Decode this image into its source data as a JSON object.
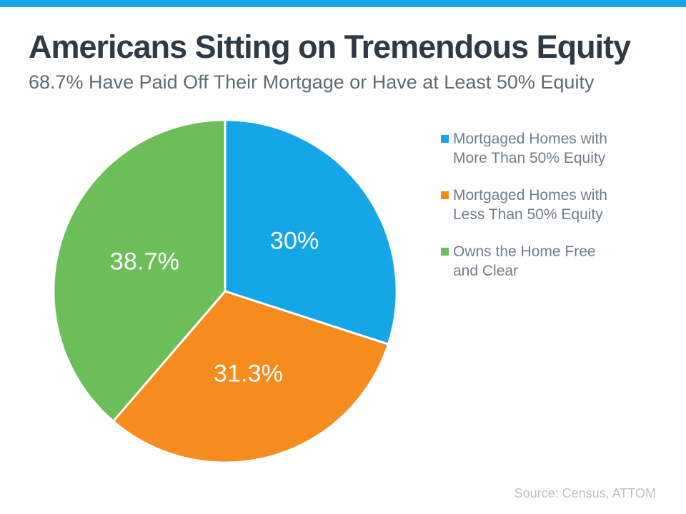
{
  "page": {
    "title": "Americans Sitting on Tremendous Equity",
    "subtitle": "68.7% Have Paid Off Their Mortgage or Have at Least 50% Equity",
    "source": "Source: Census, ATTOM",
    "accent_bar_color": "#15A6E8",
    "title_color": "#2E3A45",
    "subtitle_color": "#5C6B75",
    "legend_text_color": "#6F7D8C",
    "source_text_color": "#B9C0C7"
  },
  "chart_data": {
    "type": "pie",
    "title": "Americans Sitting on Tremendous Equity",
    "subtitle": "68.7% Have Paid Off Their Mortgage or Have at Least 50% Equity",
    "categories": [
      "Mortgaged Homes with More Than 50% Equity",
      "Mortgaged Homes with Less Than 50% Equity",
      "Owns the Home Free and Clear"
    ],
    "values": [
      30,
      31.3,
      38.7
    ],
    "labels": [
      "30%",
      "31.3%",
      "38.7%"
    ],
    "colors": [
      "#15A6E8",
      "#F68B1E",
      "#6CBE58"
    ],
    "start_angle": "12 o'clock",
    "direction": "clockwise",
    "slice_separator_color": "#FFFFFF",
    "legend_position": "right",
    "legend": [
      {
        "label": "Mortgaged Homes with More Than 50% Equity",
        "lines": [
          "Mortgaged Homes with",
          "More Than 50% Equity"
        ],
        "color": "#15A6E8"
      },
      {
        "label": "Mortgaged Homes with Less Than 50% Equity",
        "lines": [
          "Mortgaged Homes with",
          "Less Than 50% Equity"
        ],
        "color": "#F68B1E"
      },
      {
        "label": "Owns the Home Free and Clear",
        "lines": [
          "Owns the Home Free",
          "and Clear"
        ],
        "color": "#6CBE58"
      }
    ],
    "source": "Source: Census, ATTOM"
  }
}
